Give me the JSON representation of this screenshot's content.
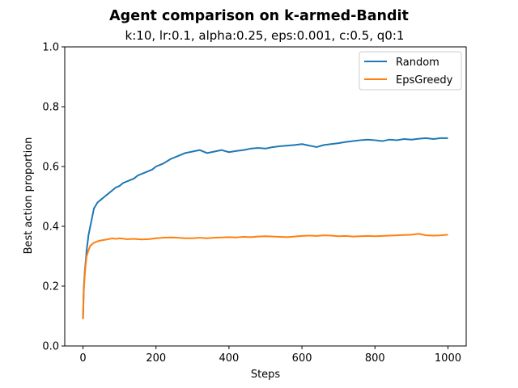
{
  "chart_data": {
    "type": "line",
    "title": "Agent comparison on k-armed-Bandit",
    "subtitle": "k:10, lr:0.1, alpha:0.25, eps:0.001, c:0.5, q0:1",
    "xlabel": "Steps",
    "ylabel": "Best action proportion",
    "xlim": [
      -50,
      1050
    ],
    "ylim": [
      0.0,
      1.0
    ],
    "xticks": [
      "0",
      "200",
      "400",
      "600",
      "800",
      "1000"
    ],
    "yticks": [
      "0.0",
      "0.2",
      "0.4",
      "0.6",
      "0.8",
      "1.0"
    ],
    "grid": false,
    "legend_position": "top-right",
    "series": [
      {
        "name": "Random",
        "color": "#1f77b4",
        "x": [
          0,
          2,
          5,
          8,
          10,
          15,
          20,
          25,
          30,
          35,
          40,
          50,
          60,
          70,
          80,
          90,
          100,
          110,
          120,
          130,
          140,
          150,
          160,
          170,
          180,
          190,
          200,
          220,
          240,
          260,
          280,
          300,
          320,
          340,
          360,
          380,
          400,
          420,
          440,
          460,
          480,
          500,
          520,
          540,
          560,
          580,
          600,
          620,
          640,
          660,
          680,
          700,
          720,
          740,
          760,
          780,
          800,
          820,
          840,
          860,
          880,
          900,
          920,
          940,
          960,
          980,
          1000
        ],
        "y": [
          0.09,
          0.19,
          0.25,
          0.29,
          0.32,
          0.37,
          0.4,
          0.43,
          0.46,
          0.47,
          0.48,
          0.49,
          0.5,
          0.51,
          0.52,
          0.53,
          0.535,
          0.545,
          0.55,
          0.555,
          0.56,
          0.57,
          0.575,
          0.58,
          0.585,
          0.59,
          0.6,
          0.61,
          0.625,
          0.635,
          0.645,
          0.65,
          0.655,
          0.645,
          0.65,
          0.655,
          0.648,
          0.652,
          0.655,
          0.66,
          0.662,
          0.66,
          0.665,
          0.668,
          0.67,
          0.672,
          0.675,
          0.67,
          0.665,
          0.672,
          0.675,
          0.678,
          0.682,
          0.685,
          0.688,
          0.69,
          0.688,
          0.685,
          0.69,
          0.688,
          0.692,
          0.69,
          0.693,
          0.695,
          0.692,
          0.695,
          0.695
        ]
      },
      {
        "name": "EpsGreedy",
        "color": "#ff7f0e",
        "x": [
          0,
          2,
          5,
          8,
          10,
          15,
          20,
          25,
          30,
          40,
          50,
          60,
          70,
          80,
          90,
          100,
          120,
          140,
          160,
          180,
          200,
          220,
          240,
          260,
          280,
          300,
          320,
          340,
          360,
          380,
          400,
          420,
          440,
          460,
          480,
          500,
          520,
          540,
          560,
          580,
          600,
          620,
          640,
          660,
          680,
          700,
          720,
          740,
          760,
          780,
          800,
          820,
          840,
          860,
          880,
          900,
          920,
          940,
          960,
          980,
          1000
        ],
        "y": [
          0.09,
          0.18,
          0.24,
          0.28,
          0.3,
          0.32,
          0.335,
          0.34,
          0.345,
          0.35,
          0.353,
          0.355,
          0.357,
          0.36,
          0.358,
          0.36,
          0.357,
          0.358,
          0.356,
          0.357,
          0.36,
          0.362,
          0.363,
          0.362,
          0.36,
          0.36,
          0.362,
          0.36,
          0.362,
          0.363,
          0.364,
          0.363,
          0.365,
          0.364,
          0.366,
          0.367,
          0.366,
          0.365,
          0.364,
          0.366,
          0.368,
          0.369,
          0.368,
          0.37,
          0.369,
          0.367,
          0.368,
          0.366,
          0.367,
          0.368,
          0.367,
          0.368,
          0.369,
          0.37,
          0.371,
          0.372,
          0.375,
          0.37,
          0.369,
          0.37,
          0.372
        ]
      }
    ]
  }
}
